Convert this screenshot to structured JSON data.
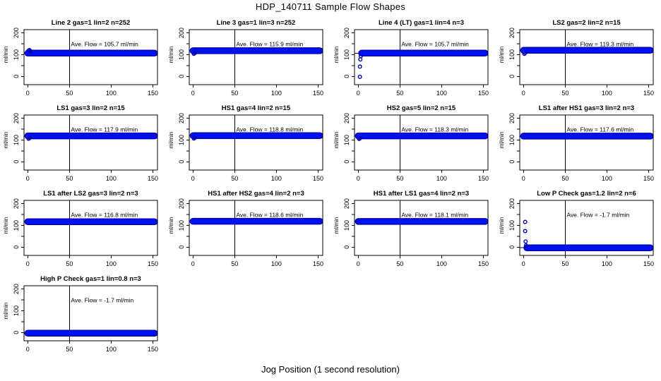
{
  "page": {
    "title": "HDP_140711  Sample Flow Shapes",
    "xlabel": "Jog Position (1 second resolution)"
  },
  "axis": {
    "ylab": "ml/min",
    "x_ticks": [
      0,
      50,
      100,
      150
    ],
    "y_ticks_all": [
      0,
      50,
      100,
      150,
      200
    ],
    "y_ticks_labeled": [
      0,
      100,
      200
    ],
    "xlim": [
      -4.5,
      155.5
    ],
    "ylim": [
      -38,
      215
    ],
    "vline_x": 50
  },
  "style": {
    "point_color": "#0011EE",
    "point_edge_color": "#0000B0",
    "ref_line_color": "#000000",
    "box_color": "#000000"
  },
  "chart_data": [
    {
      "type": "scatter",
      "title": "Line 2 gas=1 lin=2 n=252",
      "ave_flow": 105.7,
      "annotation": "Ave. Flow =  105.7  ml/min",
      "plateau": 107,
      "band_x": [
        0,
        152
      ],
      "transients": [
        [
          1,
          119
        ],
        [
          2,
          121
        ],
        [
          3,
          117
        ]
      ]
    },
    {
      "type": "scatter",
      "title": "Line 3 gas=1 lin=3 n=252",
      "ave_flow": 115.9,
      "annotation": "Ave. Flow =  115.9  ml/min",
      "plateau": 118,
      "band_x": [
        0,
        152
      ],
      "transients": [
        [
          1,
          104
        ],
        [
          2,
          107
        ]
      ]
    },
    {
      "type": "scatter",
      "title": "Line 4 (LT) gas=1 lin=4 n=3",
      "ave_flow": 105.7,
      "annotation": "Ave. Flow =  105.7  ml/min",
      "plateau": 107,
      "band_x": [
        4,
        152
      ],
      "transients": [
        [
          2,
          -2
        ],
        [
          2,
          45
        ],
        [
          2.5,
          78
        ],
        [
          3,
          93
        ]
      ]
    },
    {
      "type": "scatter",
      "title": "LS2 gas=2 lin=2 n=15",
      "ave_flow": 119.3,
      "annotation": "Ave. Flow =  119.3  ml/min",
      "plateau": 120,
      "band_x": [
        0,
        152
      ],
      "transients": [
        [
          1,
          104
        ],
        [
          2,
          108
        ]
      ]
    },
    {
      "type": "scatter",
      "title": "LS1 gas=3 lin=2 n=15",
      "ave_flow": 117.9,
      "annotation": "Ave. Flow =  117.9  ml/min",
      "plateau": 119,
      "band_x": [
        0,
        152
      ],
      "transients": [
        [
          1,
          106
        ],
        [
          2,
          109
        ]
      ]
    },
    {
      "type": "scatter",
      "title": "HS1 gas=4 lin=2 n=15",
      "ave_flow": 118.8,
      "annotation": "Ave. Flow =  118.8  ml/min",
      "plateau": 120,
      "band_x": [
        0,
        152
      ],
      "transients": [
        [
          1,
          107
        ],
        [
          2,
          110
        ]
      ]
    },
    {
      "type": "scatter",
      "title": "HS2 gas=5 lin=2 n=15",
      "ave_flow": 118.3,
      "annotation": "Ave. Flow =  118.3  ml/min",
      "plateau": 119,
      "band_x": [
        0,
        152
      ],
      "transients": [
        [
          1,
          105
        ],
        [
          2,
          108
        ]
      ]
    },
    {
      "type": "scatter",
      "title": "LS1 after HS1 gas=3 lin=2 n=3",
      "ave_flow": 117.6,
      "annotation": "Ave. Flow =  117.6  ml/min",
      "plateau": 118,
      "band_x": [
        0,
        152
      ],
      "transients": []
    },
    {
      "type": "scatter",
      "title": "LS1 after LS2 gas=3 lin=2 n=3",
      "ave_flow": 116.8,
      "annotation": "Ave. Flow =  116.8  ml/min",
      "plateau": 117,
      "band_x": [
        0,
        152
      ],
      "transients": []
    },
    {
      "type": "scatter",
      "title": "HS1 after HS2 gas=4 lin=2 n=3",
      "ave_flow": 118.6,
      "annotation": "Ave. Flow =  118.6  ml/min",
      "plateau": 119,
      "band_x": [
        0,
        152
      ],
      "transients": []
    },
    {
      "type": "scatter",
      "title": "HS1 after LS1 gas=4 lin=2 n=3",
      "ave_flow": 118.1,
      "annotation": "Ave. Flow =  118.1  ml/min",
      "plateau": 118,
      "band_x": [
        0,
        152
      ],
      "transients": []
    },
    {
      "type": "scatter",
      "title": "Low P Check gas=1.2 lin=2 n=6",
      "ave_flow": -1.7,
      "annotation": "Ave. Flow =  -1.7  ml/min",
      "plateau": -3,
      "band_x": [
        4,
        152
      ],
      "transients": [
        [
          2,
          116
        ],
        [
          2,
          74
        ],
        [
          2.5,
          26
        ],
        [
          3,
          8
        ]
      ]
    },
    {
      "type": "scatter",
      "title": "High P Check gas=1 lin=0.8 n=3",
      "ave_flow": -1.7,
      "annotation": "Ave. Flow =  -1.7  ml/min",
      "plateau": -3,
      "band_x": [
        0,
        152
      ],
      "transients": []
    }
  ]
}
